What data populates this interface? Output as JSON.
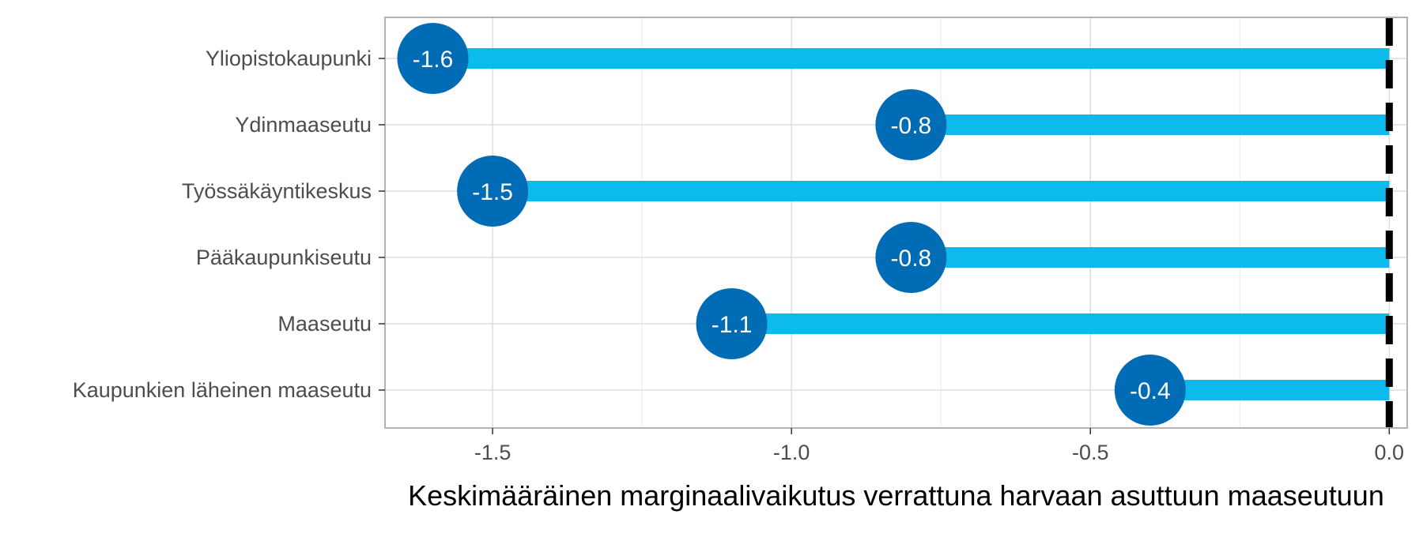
{
  "chart_data": {
    "type": "bar",
    "orientation": "horizontal",
    "style": "lollipop",
    "categories": [
      "Yliopistokaupunki",
      "Ydinmaaseutu",
      "Työssäkäyntikeskus",
      "Pääkaupunkiseutu",
      "Maaseutu",
      "Kaupunkien läheinen maaseutu"
    ],
    "values": [
      -1.6,
      -0.8,
      -1.5,
      -0.8,
      -1.1,
      -0.4
    ],
    "value_labels": [
      "-1.6",
      "-0.8",
      "-1.5",
      "-0.8",
      "-1.1",
      "-0.4"
    ],
    "xlabel": "Keskimääräinen marginaalivaikutus verrattuna harvaan asuttuun maaseutuun",
    "ylabel": "",
    "xlim": [
      -1.68,
      0.03
    ],
    "x_ticks": [
      -1.5,
      -1.0,
      -0.5,
      0.0
    ],
    "x_tick_labels": [
      "-1.5",
      "-1.0",
      "-0.5",
      "0.0"
    ],
    "reference_line": {
      "x": 0,
      "style": "dashed"
    },
    "grid": true,
    "legend": "none",
    "colors": {
      "bar": "#0dbaec",
      "point": "#006cb5",
      "label": "#ffffff",
      "reference": "#000000"
    }
  }
}
